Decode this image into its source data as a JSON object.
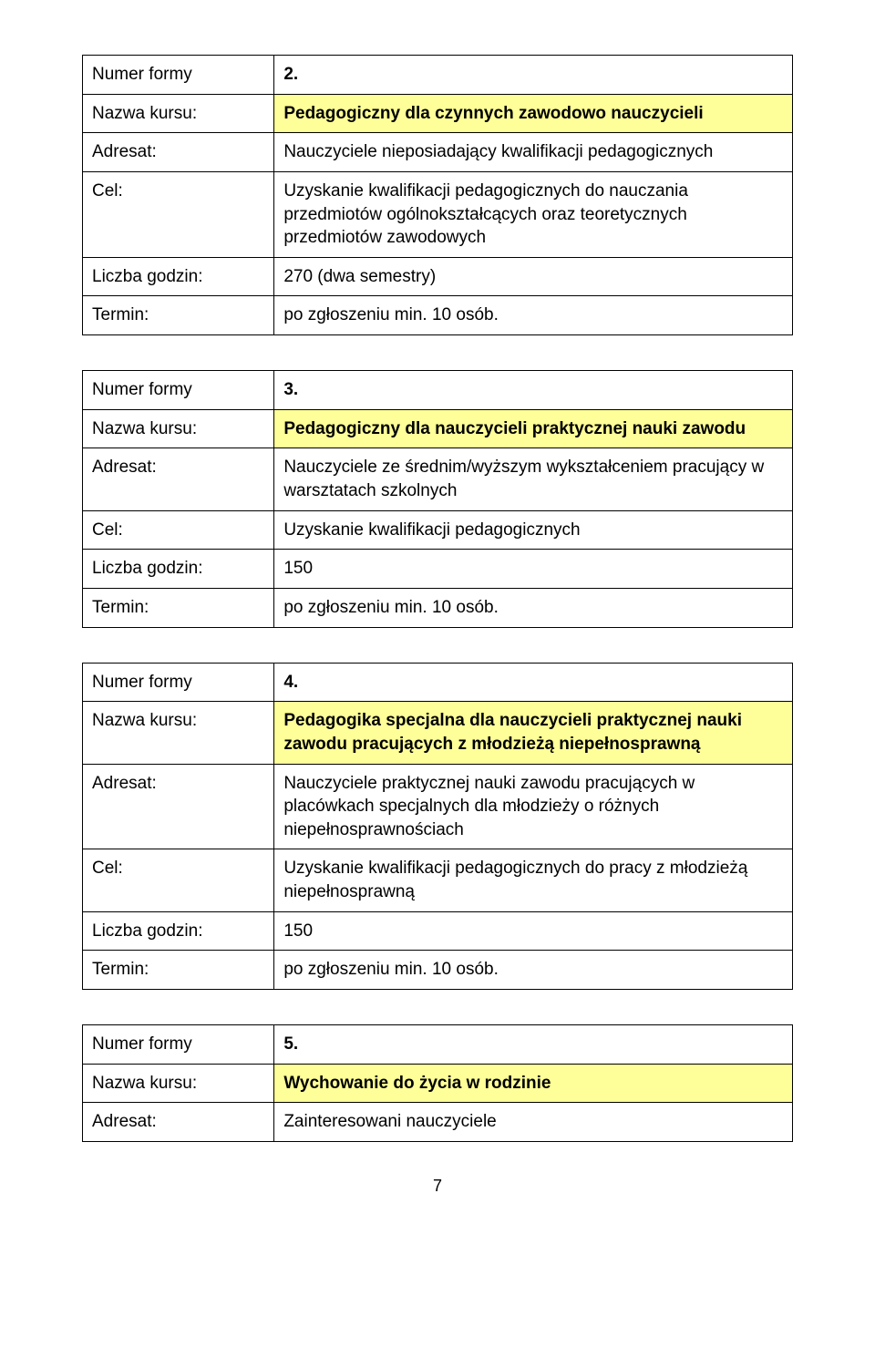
{
  "labels": {
    "numer_formy": "Numer formy",
    "nazwa_kursu": "Nazwa kursu:",
    "adresat": "Adresat:",
    "cel": "Cel:",
    "liczba_godzin": "Liczba godzin:",
    "termin": "Termin:"
  },
  "tables": {
    "t1": {
      "numer": "2.",
      "nazwa": "Pedagogiczny dla czynnych zawodowo nauczycieli",
      "adresat": "Nauczyciele nieposiadający kwalifikacji pedagogicznych",
      "cel": "Uzyskanie kwalifikacji pedagogicznych do nauczania przedmiotów ogólnokształcących oraz teoretycznych przedmiotów zawodowych",
      "liczba": "270 (dwa semestry)",
      "termin": "po zgłoszeniu min. 10 osób."
    },
    "t2": {
      "numer": "3.",
      "nazwa": "Pedagogiczny dla nauczycieli praktycznej nauki zawodu",
      "adresat": "Nauczyciele ze średnim/wyższym  wykształceniem pracujący w warsztatach szkolnych",
      "cel": "Uzyskanie kwalifikacji pedagogicznych",
      "liczba": "150",
      "termin": "po zgłoszeniu min. 10 osób."
    },
    "t3": {
      "numer": "4.",
      "nazwa": "Pedagogika specjalna dla nauczycieli praktycznej nauki zawodu pracujących z młodzieżą niepełnosprawną",
      "adresat": "Nauczyciele praktycznej nauki zawodu pracujących w placówkach specjalnych dla młodzieży o różnych niepełnosprawnościach",
      "cel": "Uzyskanie kwalifikacji pedagogicznych do pracy z młodzieżą niepełnosprawną",
      "liczba": "150",
      "termin": "po zgłoszeniu min. 10 osób."
    },
    "t4": {
      "numer": "5.",
      "nazwa": "Wychowanie do życia w rodzinie",
      "adresat": "Zainteresowani nauczyciele"
    }
  },
  "page_number": "7",
  "colors": {
    "highlight_bg": "#ffff99",
    "border": "#000000",
    "text": "#000000",
    "page_bg": "#ffffff"
  },
  "typography": {
    "cell_fontsize": 19,
    "pagenum_fontsize": 18,
    "font_family": "Arial"
  }
}
